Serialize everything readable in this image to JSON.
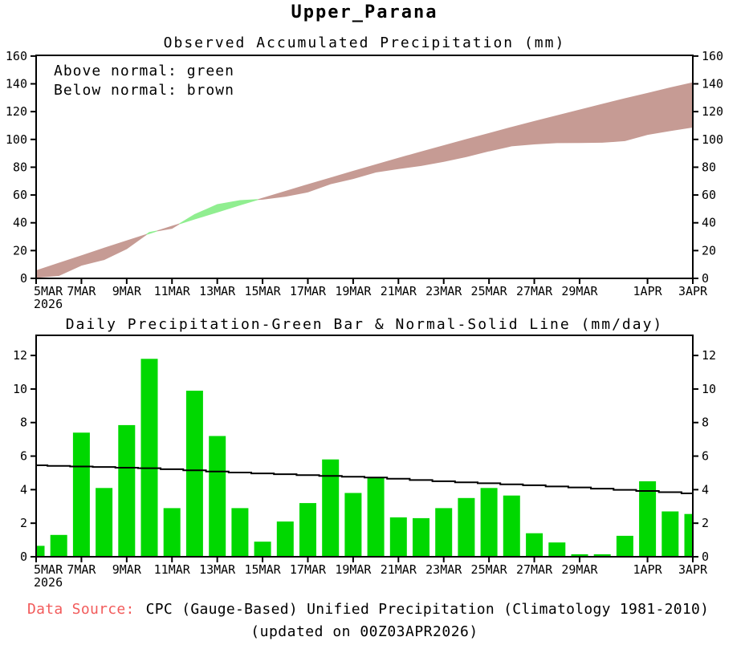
{
  "page": {
    "title": "Upper_Parana"
  },
  "top_chart": {
    "title": "Observed Accumulated Precipitation (mm)",
    "legend_above": "Above normal: green",
    "legend_below": "Below normal: brown"
  },
  "bottom_chart": {
    "title": "Daily Precipitation-Green Bar & Normal-Solid Line (mm/day)"
  },
  "footer": {
    "source_label": "Data Source:",
    "source_text": "CPC (Gauge-Based) Unified Precipitation (Climatology 1981-2010)",
    "updated": "(updated on 00Z03APR2026)"
  },
  "colors": {
    "above_normal_green": "#90EE90",
    "below_normal_brown": "#C69B94",
    "bar_green": "#00D800",
    "axis_black": "#000000",
    "source_red": "#F25B5B"
  },
  "chart_data": [
    {
      "type": "area",
      "title": "Observed Accumulated Precipitation (mm)",
      "ylabel": "mm",
      "ylim": [
        0,
        160
      ],
      "yticks": [
        0,
        20,
        40,
        60,
        80,
        100,
        120,
        140,
        160
      ],
      "legend": [
        "Above normal: green",
        "Below normal: brown"
      ],
      "x_dates": [
        "5MAR",
        "6MAR",
        "7MAR",
        "8MAR",
        "9MAR",
        "10MAR",
        "11MAR",
        "12MAR",
        "13MAR",
        "14MAR",
        "15MAR",
        "16MAR",
        "17MAR",
        "18MAR",
        "19MAR",
        "20MAR",
        "21MAR",
        "22MAR",
        "23MAR",
        "24MAR",
        "25MAR",
        "26MAR",
        "27MAR",
        "28MAR",
        "29MAR",
        "30MAR",
        "31MAR",
        "1APR",
        "2APR",
        "3APR"
      ],
      "x_tick_indices": [
        0,
        2,
        4,
        6,
        8,
        10,
        12,
        14,
        16,
        18,
        20,
        22,
        24,
        27,
        29
      ],
      "x_tick_labels": [
        "5MAR",
        "7MAR",
        "9MAR",
        "11MAR",
        "13MAR",
        "15MAR",
        "17MAR",
        "19MAR",
        "21MAR",
        "23MAR",
        "25MAR",
        "27MAR",
        "29MAR",
        "1APR",
        "3APR"
      ],
      "x_year_label": "2026",
      "series": [
        {
          "name": "normal_accumulated",
          "values": [
            5.5,
            10.9,
            16.3,
            21.7,
            27.0,
            32.3,
            37.5,
            42.7,
            47.7,
            52.8,
            57.7,
            62.6,
            67.5,
            72.3,
            77.1,
            81.8,
            86.5,
            91.0,
            95.5,
            100.0,
            104.3,
            108.7,
            112.9,
            117.1,
            121.2,
            125.3,
            129.3,
            133.2,
            137.1,
            140.8
          ]
        },
        {
          "name": "observed_accumulated",
          "values": [
            0.7,
            2.0,
            9.4,
            13.5,
            21.3,
            33.1,
            36.0,
            45.9,
            53.1,
            56.0,
            56.9,
            59.0,
            62.2,
            68.0,
            71.8,
            76.5,
            78.9,
            81.2,
            84.1,
            87.6,
            91.7,
            95.3,
            96.7,
            97.6,
            97.7,
            97.9,
            99.1,
            103.6,
            106.3,
            108.9
          ]
        }
      ],
      "fill_rule": "green where observed above normal, brown where observed below normal"
    },
    {
      "type": "bar",
      "title": "Daily Precipitation-Green Bar & Normal-Solid Line (mm/day)",
      "ylabel": "mm/day",
      "ylim": [
        0,
        12
      ],
      "yticks": [
        0,
        2,
        4,
        6,
        8,
        10,
        12
      ],
      "x_dates": [
        "5MAR",
        "6MAR",
        "7MAR",
        "8MAR",
        "9MAR",
        "10MAR",
        "11MAR",
        "12MAR",
        "13MAR",
        "14MAR",
        "15MAR",
        "16MAR",
        "17MAR",
        "18MAR",
        "19MAR",
        "20MAR",
        "21MAR",
        "22MAR",
        "23MAR",
        "24MAR",
        "25MAR",
        "26MAR",
        "27MAR",
        "28MAR",
        "29MAR",
        "30MAR",
        "31MAR",
        "1APR",
        "2APR",
        "3APR"
      ],
      "x_tick_indices": [
        0,
        2,
        4,
        6,
        8,
        10,
        12,
        14,
        16,
        18,
        20,
        22,
        24,
        27,
        29
      ],
      "x_tick_labels": [
        "5MAR",
        "7MAR",
        "9MAR",
        "11MAR",
        "13MAR",
        "15MAR",
        "17MAR",
        "19MAR",
        "21MAR",
        "23MAR",
        "25MAR",
        "27MAR",
        "29MAR",
        "1APR",
        "3APR"
      ],
      "x_year_label": "2026",
      "series": [
        {
          "name": "daily_precipitation_bars",
          "type": "bar",
          "values": [
            0.65,
            1.3,
            7.4,
            4.1,
            7.85,
            11.8,
            2.9,
            9.9,
            7.2,
            2.9,
            0.9,
            2.1,
            3.2,
            5.8,
            3.8,
            4.7,
            2.35,
            2.3,
            2.9,
            3.5,
            4.1,
            3.65,
            1.4,
            0.85,
            0.15,
            0.15,
            1.25,
            4.5,
            2.7,
            2.55
          ]
        },
        {
          "name": "normal_daily_line",
          "type": "line",
          "values": [
            5.45,
            5.42,
            5.38,
            5.35,
            5.31,
            5.28,
            5.22,
            5.15,
            5.08,
            5.02,
            4.97,
            4.92,
            4.87,
            4.82,
            4.77,
            4.72,
            4.65,
            4.57,
            4.5,
            4.44,
            4.38,
            4.32,
            4.26,
            4.19,
            4.13,
            4.06,
            3.99,
            3.92,
            3.85,
            3.78
          ]
        }
      ]
    }
  ]
}
